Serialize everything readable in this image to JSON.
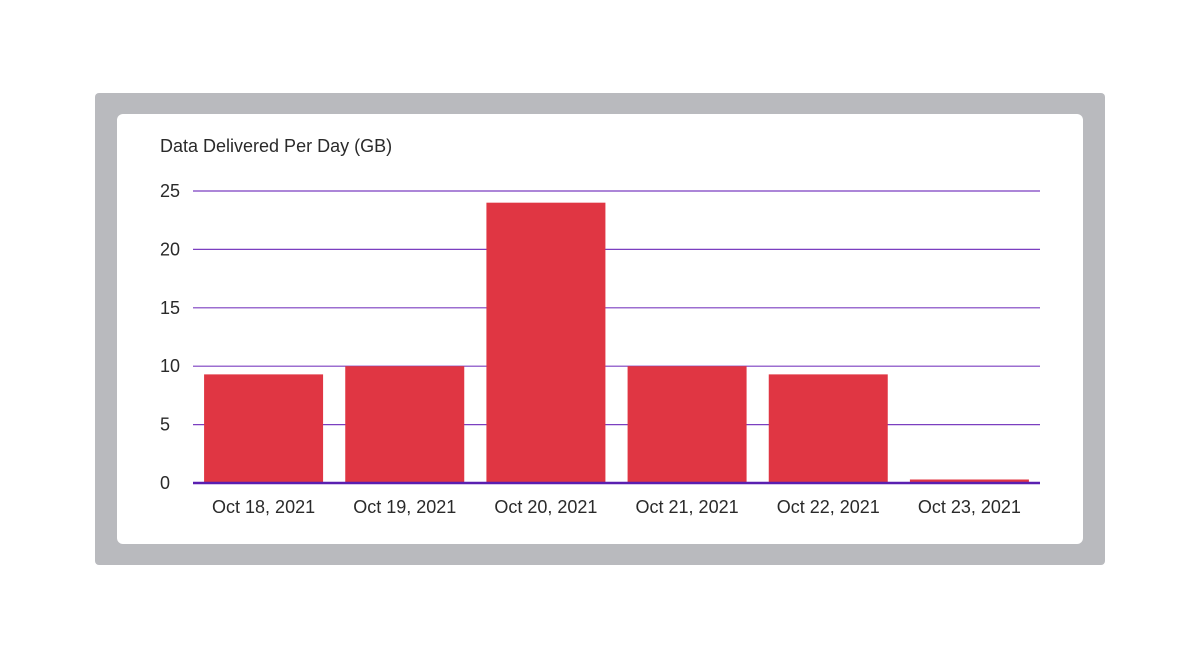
{
  "chart_data": {
    "type": "bar",
    "title": "Data Delivered Per Day (GB)",
    "xlabel": "",
    "ylabel": "",
    "categories": [
      "Oct 18, 2021",
      "Oct 19, 2021",
      "Oct 20, 2021",
      "Oct 21, 2021",
      "Oct 22, 2021",
      "Oct 23, 2021"
    ],
    "values": [
      9.3,
      10.0,
      24.0,
      10.0,
      9.3,
      0.3
    ],
    "ylim": [
      0,
      25
    ],
    "yticks": [
      "0",
      "5",
      "10",
      "15",
      "20",
      "25"
    ],
    "grid": true,
    "legend": "none"
  },
  "colors": {
    "frame": "#b9babe",
    "card": "#ffffff",
    "bar": "#e03643",
    "grid": "#7b3fc0",
    "baseline": "#5a1fb0",
    "text": "#2a2a2a"
  }
}
